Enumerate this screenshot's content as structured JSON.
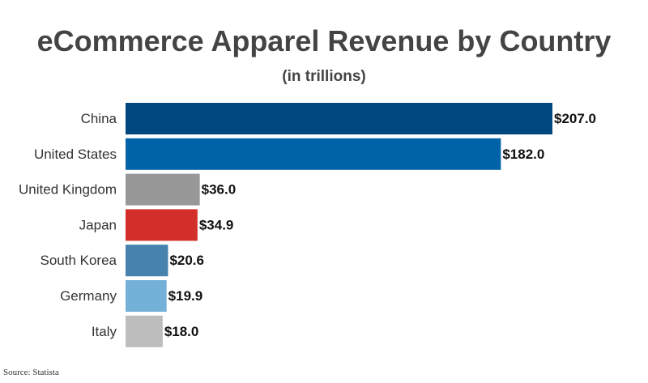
{
  "chart_data": {
    "type": "bar",
    "orientation": "horizontal",
    "title": "eCommerce Apparel Revenue by Country",
    "subtitle": "(in trillions)",
    "categories": [
      "China",
      "United States",
      "United Kingdom",
      "Japan",
      "South Korea",
      "Germany",
      "Italy"
    ],
    "values": [
      207.0,
      182.0,
      36.0,
      34.9,
      20.6,
      19.9,
      18.0
    ],
    "value_labels": [
      "$207.0",
      "$182.0",
      "$36.0",
      "$34.9",
      "$20.6",
      "$19.9",
      "$18.0"
    ],
    "colors": [
      "#00467F",
      "#0063A8",
      "#989898",
      "#D32F2A",
      "#4682AD",
      "#74B1D8",
      "#BDBDBD"
    ],
    "xlim": [
      0,
      207
    ],
    "grid": false,
    "legend": "none"
  },
  "source": "Source: Statista"
}
